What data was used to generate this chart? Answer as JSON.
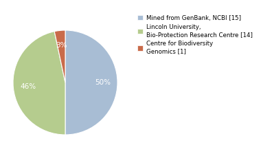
{
  "slices": [
    15,
    14,
    1
  ],
  "colors": [
    "#a8bdd4",
    "#b5cc8e",
    "#c96b4a"
  ],
  "autopct_labels": [
    "50%",
    "46%",
    "3%"
  ],
  "legend_labels": [
    "Mined from GenBank, NCBI [15]",
    "Lincoln University,\nBio-Protection Research Centre [14]",
    "Centre for Biodiversity\nGenomics [1]"
  ],
  "background_color": "#ffffff",
  "startangle": 90,
  "pctdistance": 0.72
}
